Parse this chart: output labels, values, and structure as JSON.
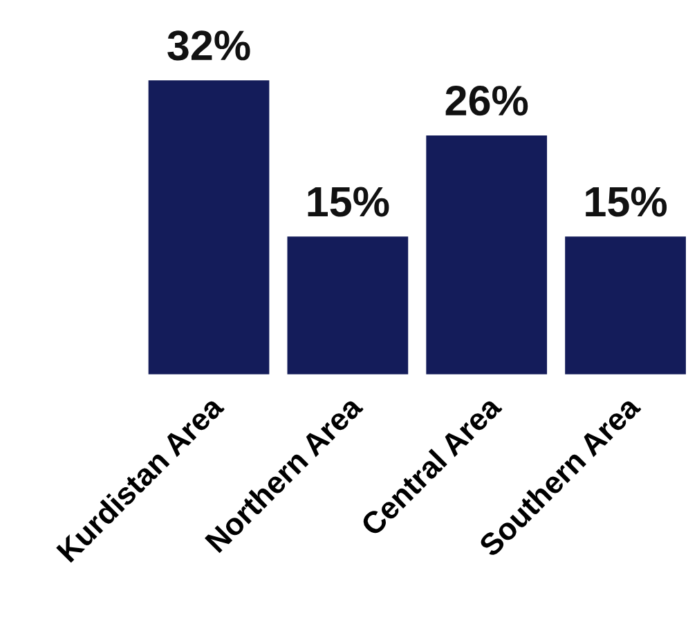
{
  "chart_data": {
    "type": "bar",
    "categories": [
      "Kurdistan Area",
      "Northern Area",
      "Central Area",
      "Southern Area"
    ],
    "values": [
      32,
      15,
      26,
      15
    ],
    "value_labels": [
      "32%",
      "15%",
      "26%",
      "15%"
    ],
    "color": "#141c5a",
    "grid": false
  }
}
